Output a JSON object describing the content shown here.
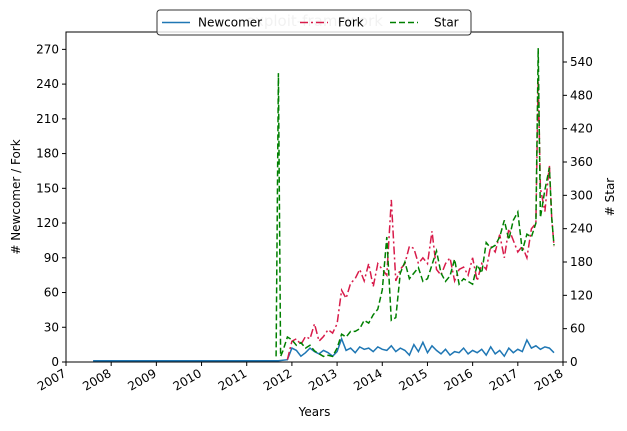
{
  "chart_data": {
    "type": "line",
    "title": "exploit-framework",
    "xlabel": "Years",
    "ylabel_left": "# Newcomer / Fork",
    "ylabel_right": "# Star",
    "x_ticks": [
      "2007",
      "2008",
      "2009",
      "2010",
      "2011",
      "2012",
      "2013",
      "2014",
      "2015",
      "2016",
      "2017",
      "2018"
    ],
    "xlim": [
      2007.0,
      2018.0
    ],
    "ylim_left": [
      0,
      285
    ],
    "ylim_right": [
      0,
      594
    ],
    "y_ticks_left": [
      0,
      30,
      60,
      90,
      120,
      150,
      180,
      210,
      240,
      270
    ],
    "y_ticks_right": [
      0,
      60,
      120,
      180,
      240,
      300,
      360,
      420,
      480,
      540
    ],
    "legend_position": "top-center",
    "grid": false,
    "series": [
      {
        "name": "Newcomer",
        "axis": "left",
        "color": "#1f77b4",
        "style": "solid",
        "x": [
          2007.6,
          2011.7,
          2011.9,
          2012.0,
          2012.1,
          2012.2,
          2012.3,
          2012.4,
          2012.5,
          2012.6,
          2012.7,
          2012.8,
          2012.9,
          2013.0,
          2013.1,
          2013.2,
          2013.3,
          2013.4,
          2013.5,
          2013.6,
          2013.7,
          2013.8,
          2013.9,
          2014.0,
          2014.1,
          2014.2,
          2014.3,
          2014.4,
          2014.5,
          2014.6,
          2014.7,
          2014.8,
          2014.9,
          2015.0,
          2015.1,
          2015.2,
          2015.3,
          2015.4,
          2015.5,
          2015.6,
          2015.7,
          2015.8,
          2015.9,
          2016.0,
          2016.1,
          2016.2,
          2016.3,
          2016.4,
          2016.5,
          2016.6,
          2016.7,
          2016.8,
          2016.9,
          2017.0,
          2017.1,
          2017.2,
          2017.3,
          2017.4,
          2017.5,
          2017.6,
          2017.7,
          2017.8
        ],
        "y": [
          1,
          1,
          2,
          12,
          10,
          5,
          8,
          12,
          9,
          7,
          10,
          8,
          5,
          9,
          20,
          10,
          12,
          8,
          13,
          11,
          12,
          9,
          13,
          11,
          10,
          14,
          9,
          12,
          10,
          6,
          15,
          9,
          17,
          8,
          14,
          10,
          7,
          11,
          6,
          9,
          8,
          12,
          7,
          10,
          8,
          11,
          6,
          13,
          7,
          10,
          5,
          12,
          8,
          11,
          9,
          19,
          12,
          14,
          11,
          13,
          12,
          8
        ]
      },
      {
        "name": "Fork",
        "axis": "left",
        "color": "#d81b4a",
        "style": "dashdot",
        "x": [
          2011.9,
          2012.0,
          2012.1,
          2012.2,
          2012.3,
          2012.4,
          2012.5,
          2012.6,
          2012.7,
          2012.8,
          2012.9,
          2013.0,
          2013.1,
          2013.2,
          2013.3,
          2013.4,
          2013.5,
          2013.6,
          2013.7,
          2013.8,
          2013.9,
          2014.0,
          2014.1,
          2014.2,
          2014.3,
          2014.4,
          2014.5,
          2014.6,
          2014.7,
          2014.8,
          2014.9,
          2015.0,
          2015.1,
          2015.2,
          2015.3,
          2015.4,
          2015.5,
          2015.6,
          2015.7,
          2015.8,
          2015.9,
          2016.0,
          2016.1,
          2016.2,
          2016.3,
          2016.4,
          2016.5,
          2016.6,
          2016.7,
          2016.8,
          2016.9,
          2017.0,
          2017.1,
          2017.2,
          2017.3,
          2017.4,
          2017.45,
          2017.5,
          2017.6,
          2017.7,
          2017.75,
          2017.8
        ],
        "y": [
          2,
          18,
          20,
          15,
          22,
          20,
          33,
          18,
          22,
          28,
          25,
          33,
          62,
          55,
          68,
          72,
          80,
          70,
          85,
          65,
          85,
          80,
          75,
          140,
          70,
          80,
          85,
          100,
          98,
          85,
          90,
          85,
          113,
          80,
          75,
          85,
          90,
          70,
          80,
          82,
          75,
          90,
          70,
          85,
          80,
          100,
          95,
          110,
          90,
          115,
          105,
          95,
          100,
          90,
          115,
          120,
          245,
          150,
          130,
          170,
          125,
          100
        ]
      },
      {
        "name": "Star",
        "axis": "right",
        "color": "#008000",
        "style": "dashed",
        "x": [
          2011.65,
          2011.7,
          2011.75,
          2011.8,
          2011.9,
          2012.0,
          2012.1,
          2012.2,
          2012.3,
          2012.4,
          2012.5,
          2012.6,
          2012.7,
          2012.8,
          2012.9,
          2013.0,
          2013.1,
          2013.2,
          2013.3,
          2013.4,
          2013.5,
          2013.6,
          2013.7,
          2013.8,
          2013.9,
          2014.0,
          2014.1,
          2014.2,
          2014.3,
          2014.4,
          2014.5,
          2014.6,
          2014.7,
          2014.8,
          2014.9,
          2015.0,
          2015.1,
          2015.2,
          2015.3,
          2015.4,
          2015.5,
          2015.6,
          2015.7,
          2015.8,
          2015.9,
          2016.0,
          2016.1,
          2016.2,
          2016.3,
          2016.4,
          2016.5,
          2016.6,
          2016.7,
          2016.8,
          2016.9,
          2017.0,
          2017.1,
          2017.2,
          2017.3,
          2017.4,
          2017.45,
          2017.5,
          2017.6,
          2017.7,
          2017.75,
          2017.8
        ],
        "y": [
          10,
          520,
          10,
          20,
          45,
          40,
          30,
          35,
          25,
          30,
          20,
          15,
          10,
          12,
          10,
          25,
          50,
          45,
          55,
          55,
          60,
          75,
          70,
          85,
          95,
          130,
          225,
          75,
          80,
          160,
          180,
          150,
          160,
          170,
          145,
          150,
          175,
          200,
          160,
          145,
          155,
          185,
          140,
          150,
          145,
          140,
          175,
          160,
          215,
          205,
          210,
          225,
          255,
          220,
          255,
          270,
          200,
          230,
          225,
          250,
          565,
          260,
          310,
          350,
          260,
          210
        ]
      }
    ]
  }
}
